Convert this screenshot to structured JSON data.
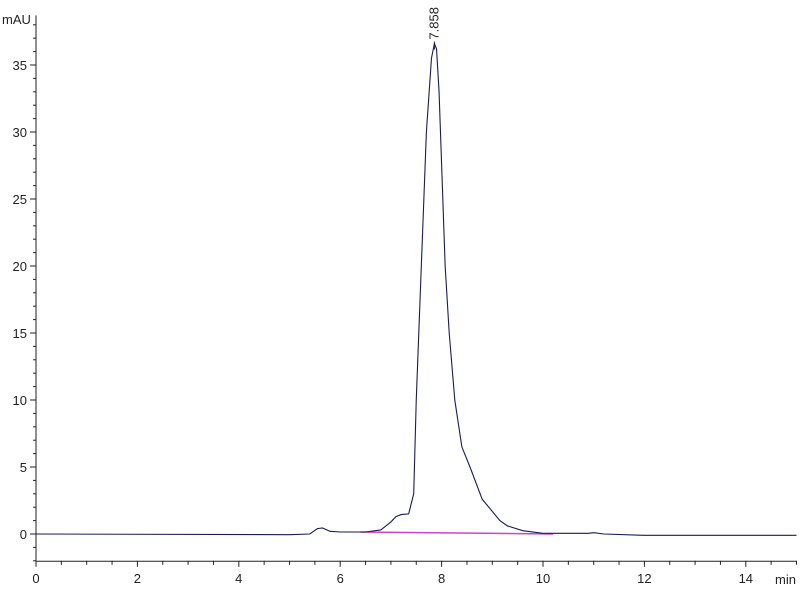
{
  "chart_data": {
    "type": "line",
    "ylabel": "mAU",
    "xlabel": "min",
    "xlim": [
      0,
      15
    ],
    "ylim": [
      -2,
      38.7
    ],
    "x_ticks": [
      0,
      2,
      4,
      6,
      8,
      10,
      12,
      14
    ],
    "y_ticks": [
      0,
      5,
      10,
      15,
      20,
      25,
      30,
      35
    ],
    "grid": false,
    "colors": {
      "trace": "#1a1a5e",
      "baseline": "#cc44cc",
      "baseline_flat": "#6b6bc8",
      "axis": "#222222"
    },
    "peak_labels": [
      {
        "x": 7.858,
        "y": 36.6,
        "label": "7.858"
      }
    ],
    "series": [
      {
        "x": [
          0,
          5.0,
          5.4,
          5.55,
          5.65,
          5.8,
          6.0,
          6.5,
          6.8,
          7.0,
          7.1,
          7.2,
          7.35,
          7.45,
          7.5,
          7.6,
          7.7,
          7.8,
          7.858,
          7.9,
          7.95,
          8.07,
          8.15,
          8.26,
          8.4,
          8.56,
          8.8,
          9.15,
          9.3,
          9.6,
          10.0,
          10.9,
          11.0,
          11.2,
          12.0,
          15.0
        ],
        "y": [
          0,
          -0.05,
          0.0,
          0.4,
          0.45,
          0.2,
          0.15,
          0.15,
          0.3,
          0.9,
          1.3,
          1.45,
          1.5,
          3,
          10,
          20,
          30,
          35.5,
          36.6,
          36.2,
          33,
          20,
          15,
          10,
          6.5,
          5,
          2.6,
          1,
          0.6,
          0.25,
          0.05,
          0.05,
          0.1,
          0.0,
          -0.1,
          -0.1
        ]
      }
    ],
    "baseline": {
      "x": [
        6.4,
        10.2
      ],
      "y": [
        0.15,
        0.0
      ]
    }
  }
}
